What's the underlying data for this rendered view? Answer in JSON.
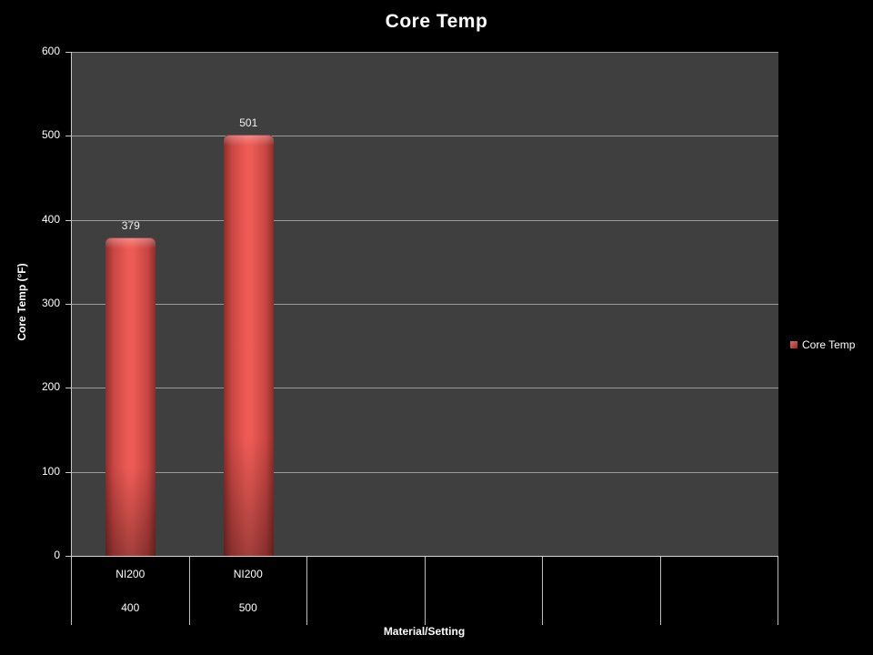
{
  "page": {
    "background": "#000000"
  },
  "chart_data": {
    "type": "bar",
    "title": "Core Temp",
    "xlabel": "Material/Setting",
    "ylabel": "Core Temp (°F)",
    "ylim": [
      0,
      600
    ],
    "yticks": [
      0,
      100,
      200,
      300,
      400,
      500,
      600
    ],
    "grid": true,
    "legend_position": "right",
    "plot_bg": "#3f3f3f",
    "gridline_color": "#9b9b9b",
    "bar_color": "#c0504d",
    "categories": [
      {
        "line1": "NI200",
        "line2": "400"
      },
      {
        "line1": "NI200",
        "line2": "500"
      },
      {
        "line1": "",
        "line2": ""
      },
      {
        "line1": "",
        "line2": ""
      },
      {
        "line1": "",
        "line2": ""
      },
      {
        "line1": "",
        "line2": ""
      }
    ],
    "series": [
      {
        "name": "Core Temp",
        "color": "#c0504d",
        "values": [
          379,
          501
        ]
      }
    ],
    "data_labels": [
      "379",
      "501"
    ]
  }
}
